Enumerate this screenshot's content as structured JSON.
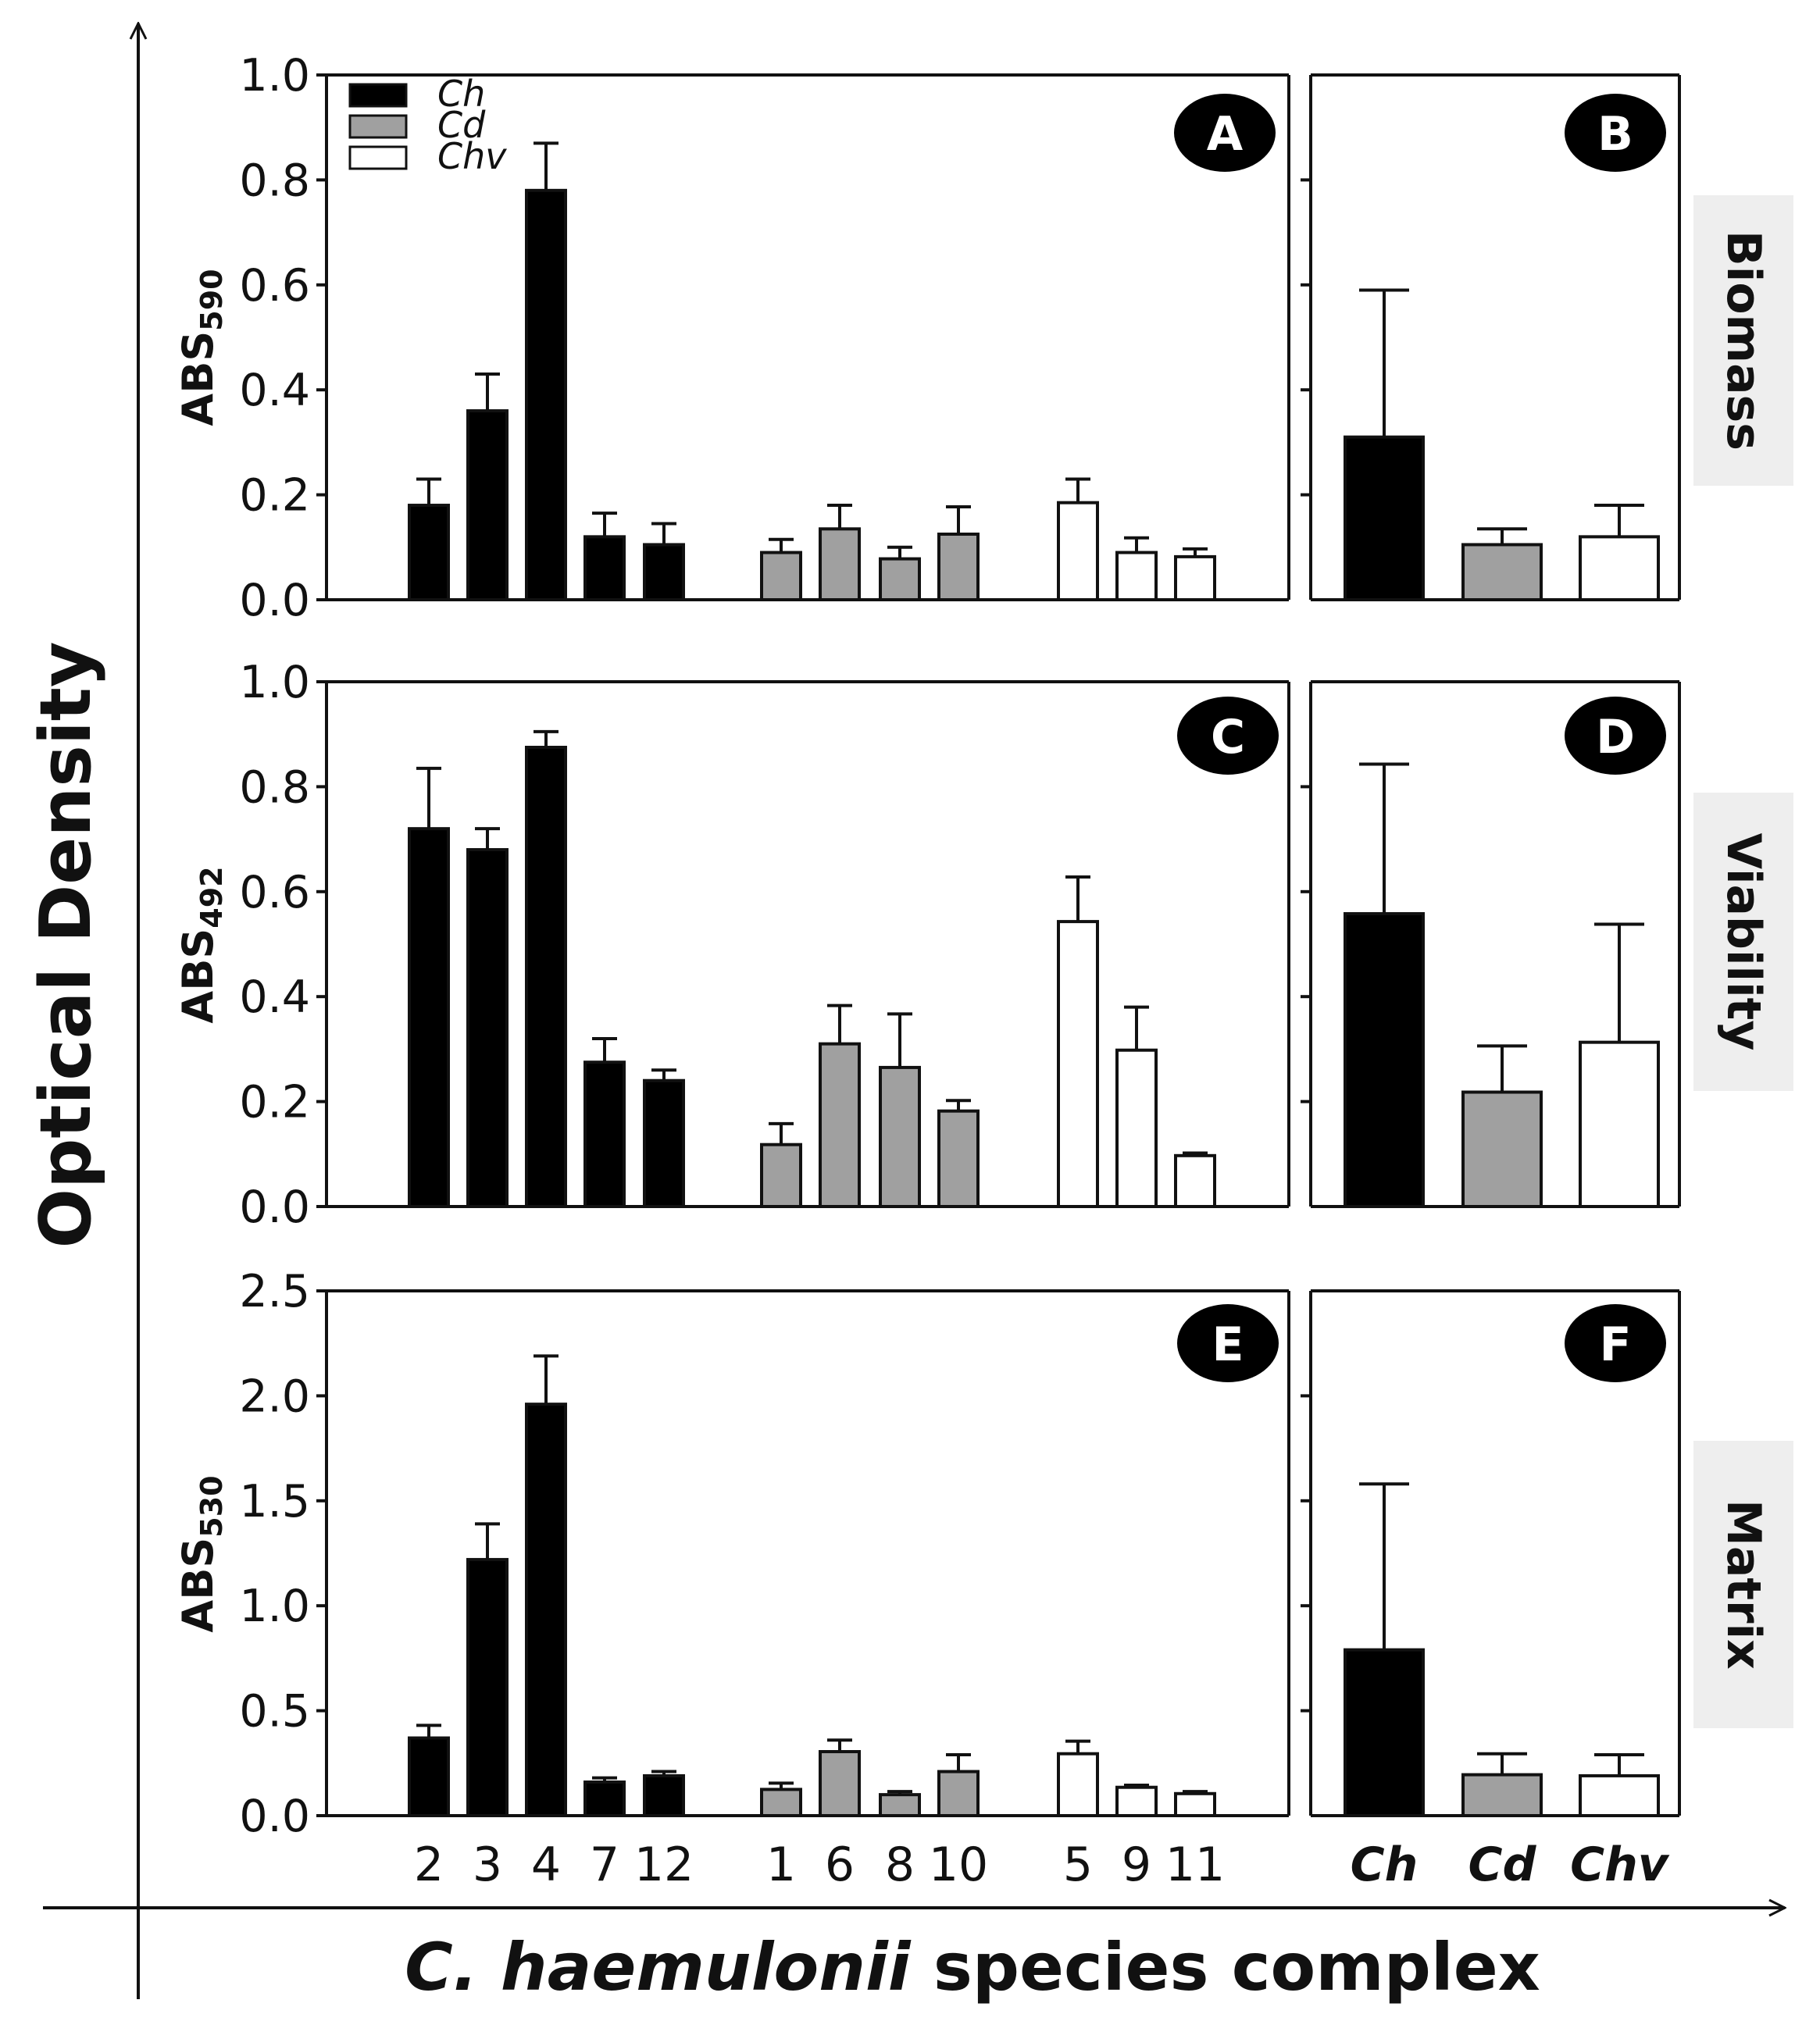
{
  "figure": {
    "y_axis_title": "Optical Density",
    "x_axis_title_italic": "C. haemulonii",
    "x_axis_title_rest": " species complex"
  },
  "colors": {
    "Ch": "#000000",
    "Cd": "#a0a0a0",
    "Chv": "#ffffff",
    "side_label_bg": "#eeeeee"
  },
  "legend": [
    {
      "label": "Ch",
      "color": "#000000"
    },
    {
      "label": "Cd",
      "color": "#a0a0a0"
    },
    {
      "label": "Chv",
      "color": "#ffffff"
    }
  ],
  "chart_data": [
    {
      "id": "A",
      "type": "bar",
      "measure": "Biomass",
      "ylabel": "ABS",
      "ylabel_subscript": "590",
      "ylim": [
        0,
        1.0
      ],
      "yticks": [
        "0.0",
        "0.2",
        "0.4",
        "0.6",
        "0.8",
        "1.0"
      ],
      "groups": [
        {
          "name": "Ch",
          "categories": [
            "2",
            "3",
            "4",
            "7",
            "12"
          ],
          "values": [
            0.18,
            0.36,
            0.78,
            0.12,
            0.105
          ],
          "errors": [
            0.05,
            0.07,
            0.09,
            0.045,
            0.04
          ]
        },
        {
          "name": "Cd",
          "categories": [
            "1",
            "6",
            "8",
            "10"
          ],
          "values": [
            0.09,
            0.135,
            0.078,
            0.125
          ],
          "errors": [
            0.025,
            0.045,
            0.022,
            0.052
          ]
        },
        {
          "name": "Chv",
          "categories": [
            "5",
            "9",
            "11"
          ],
          "values": [
            0.185,
            0.09,
            0.082
          ],
          "errors": [
            0.045,
            0.028,
            0.015
          ]
        }
      ]
    },
    {
      "id": "B",
      "type": "bar",
      "measure": "Biomass",
      "ylim": [
        0,
        1.0
      ],
      "categories": [
        "Ch",
        "Cd",
        "Chv"
      ],
      "values": [
        0.31,
        0.105,
        0.12
      ],
      "errors": [
        0.28,
        0.03,
        0.06
      ]
    },
    {
      "id": "C",
      "type": "bar",
      "measure": "Viability",
      "ylabel": "ABS",
      "ylabel_subscript": "492",
      "ylim": [
        0,
        1.0
      ],
      "yticks": [
        "0.0",
        "0.2",
        "0.4",
        "0.6",
        "0.8",
        "1.0"
      ],
      "groups": [
        {
          "name": "Ch",
          "categories": [
            "2",
            "3",
            "4",
            "7",
            "12"
          ],
          "values": [
            0.72,
            0.68,
            0.875,
            0.275,
            0.24
          ],
          "errors": [
            0.115,
            0.04,
            0.03,
            0.045,
            0.02
          ]
        },
        {
          "name": "Cd",
          "categories": [
            "1",
            "6",
            "8",
            "10"
          ],
          "values": [
            0.118,
            0.31,
            0.265,
            0.182
          ],
          "errors": [
            0.04,
            0.073,
            0.102,
            0.02
          ]
        },
        {
          "name": "Chv",
          "categories": [
            "5",
            "9",
            "11"
          ],
          "values": [
            0.543,
            0.298,
            0.097
          ],
          "errors": [
            0.085,
            0.082,
            0.005
          ]
        }
      ]
    },
    {
      "id": "D",
      "type": "bar",
      "measure": "Viability",
      "ylim": [
        0,
        1.0
      ],
      "categories": [
        "Ch",
        "Cd",
        "Chv"
      ],
      "values": [
        0.558,
        0.218,
        0.313
      ],
      "errors": [
        0.285,
        0.088,
        0.225
      ]
    },
    {
      "id": "E",
      "type": "bar",
      "measure": "Matrix",
      "ylabel": "ABS",
      "ylabel_subscript": "530",
      "ylim": [
        0,
        2.5
      ],
      "yticks": [
        "0.0",
        "0.5",
        "1.0",
        "1.5",
        "2.0",
        "2.5"
      ],
      "groups": [
        {
          "name": "Ch",
          "categories": [
            "2",
            "3",
            "4",
            "7",
            "12"
          ],
          "values": [
            0.37,
            1.22,
            1.96,
            0.16,
            0.19
          ],
          "errors": [
            0.06,
            0.17,
            0.23,
            0.02,
            0.02
          ]
        },
        {
          "name": "Cd",
          "categories": [
            "1",
            "6",
            "8",
            "10"
          ],
          "values": [
            0.125,
            0.305,
            0.1,
            0.21
          ],
          "errors": [
            0.03,
            0.055,
            0.015,
            0.08
          ]
        },
        {
          "name": "Chv",
          "categories": [
            "5",
            "9",
            "11"
          ],
          "values": [
            0.295,
            0.135,
            0.105
          ],
          "errors": [
            0.06,
            0.01,
            0.01
          ]
        }
      ]
    },
    {
      "id": "F",
      "type": "bar",
      "measure": "Matrix",
      "ylim": [
        0,
        2.5
      ],
      "categories": [
        "Ch",
        "Cd",
        "Chv"
      ],
      "values": [
        0.79,
        0.195,
        0.19
      ],
      "errors": [
        0.79,
        0.1,
        0.1
      ]
    }
  ]
}
